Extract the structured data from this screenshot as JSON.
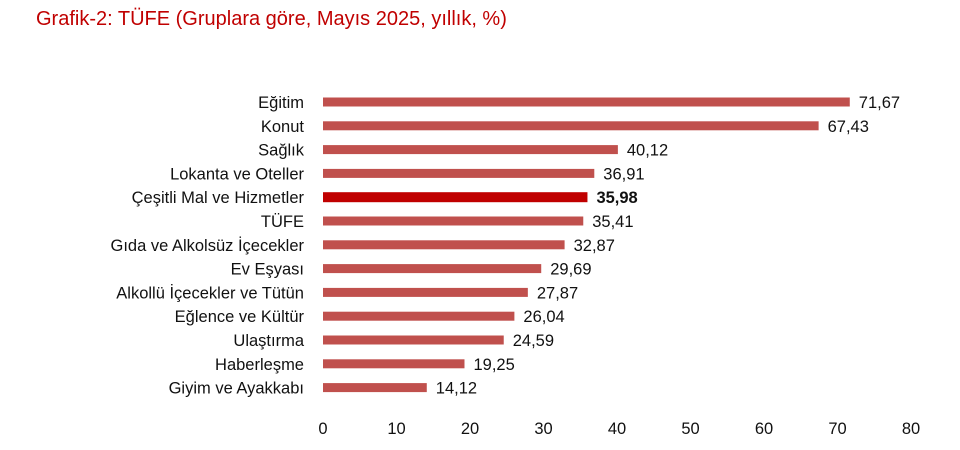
{
  "title": "Grafik-2: TÜFE (Gruplara göre, Mayıs 2025, yıllık, %)",
  "colors": {
    "title": "#c00000",
    "bar": "#c0504d",
    "highlight_bar": "#c00000",
    "text": "#111111"
  },
  "chart_data": {
    "type": "bar",
    "orientation": "horizontal",
    "title": "Grafik-2: TÜFE (Gruplara göre, Mayıs 2025, yıllık, %)",
    "xlabel": "",
    "ylabel": "",
    "xlim": [
      0,
      80
    ],
    "x_ticks": [
      "0",
      "10",
      "20",
      "30",
      "40",
      "50",
      "60",
      "70",
      "80"
    ],
    "grid": false,
    "legend": "none",
    "categories": [
      "Eğitim",
      "Konut",
      "Sağlık",
      "Lokanta ve Oteller",
      "Çeşitli Mal ve Hizmetler",
      "TÜFE",
      "Gıda ve Alkolsüz İçecekler",
      "Ev Eşyası",
      "Alkollü İçecekler ve Tütün",
      "Eğlence ve Kültür",
      "Ulaştırma",
      "Haberleşme",
      "Giyim ve Ayakkabı"
    ],
    "values": [
      71.67,
      67.43,
      40.12,
      36.91,
      35.98,
      35.41,
      32.87,
      29.69,
      27.87,
      26.04,
      24.59,
      19.25,
      14.12
    ],
    "value_labels": [
      "71,67",
      "67,43",
      "40,12",
      "36,91",
      "35,98",
      "35,41",
      "32,87",
      "29,69",
      "27,87",
      "26,04",
      "24,59",
      "19,25",
      "14,12"
    ],
    "highlighted_category": "Çeşitli Mal ve Hizmetler"
  }
}
